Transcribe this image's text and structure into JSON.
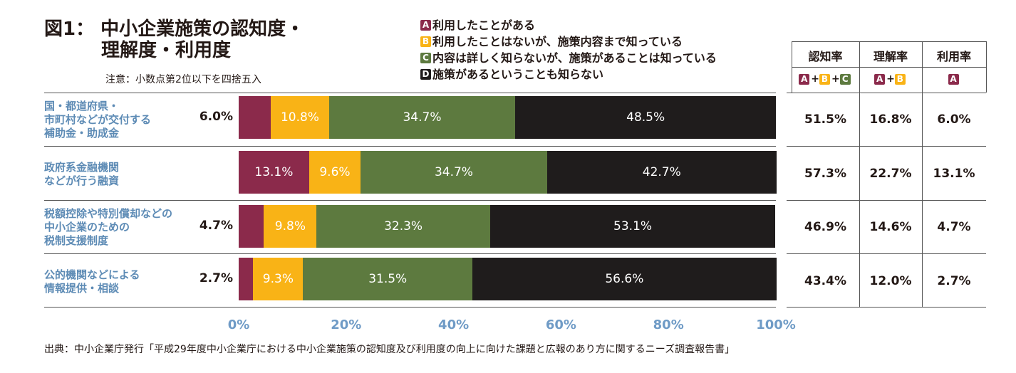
{
  "title_line1": "図1：  中小企業施策の認知度・",
  "title_line2": "理解度・利用度",
  "note": "注意：小数点第2位以下を四捨五入",
  "legend": [
    {
      "key": "A",
      "text": "利用したことがある"
    },
    {
      "key": "B",
      "text": "利用したことはないが、施策内容まで知っている"
    },
    {
      "key": "C",
      "text": "内容は詳しく知らないが、施策があることは知っている"
    },
    {
      "key": "D",
      "text": "施策があるということも知らない"
    }
  ],
  "colors": {
    "A": "#8b2a4b",
    "B": "#f9b316",
    "C": "#5d7a3f",
    "D": "#1f1c1c"
  },
  "table": {
    "headers": [
      "認知率",
      "理解率",
      "利用率"
    ],
    "formulas": [
      [
        "A",
        "+",
        "B",
        "+",
        "C"
      ],
      [
        "A",
        "+",
        "B"
      ],
      [
        "A"
      ]
    ],
    "rows": [
      [
        "51.5%",
        "16.8%",
        "6.0%"
      ],
      [
        "57.3%",
        "22.7%",
        "13.1%"
      ],
      [
        "46.9%",
        "14.6%",
        "4.7%"
      ],
      [
        "43.4%",
        "12.0%",
        "2.7%"
      ]
    ]
  },
  "chart_data": {
    "type": "bar",
    "orientation": "horizontal",
    "stacked": true,
    "categories": [
      [
        "国・都道府県・",
        "市町村などが交付する",
        "補助金・助成金"
      ],
      [
        "政府系金融機関",
        "などが行う融資"
      ],
      [
        "税額控除や特別償却などの",
        "中小企業のための",
        "税制支援制度"
      ],
      [
        "公的機関などによる",
        "情報提供・相談"
      ]
    ],
    "series": [
      {
        "name": "A",
        "values": [
          6.0,
          13.1,
          4.7,
          2.7
        ],
        "labels": [
          "6.0%",
          "13.1%",
          "4.7%",
          "2.7%"
        ]
      },
      {
        "name": "B",
        "values": [
          10.8,
          9.6,
          9.8,
          9.3
        ],
        "labels": [
          "10.8%",
          "9.6%",
          "9.8%",
          "9.3%"
        ]
      },
      {
        "name": "C",
        "values": [
          34.7,
          34.7,
          32.3,
          31.5
        ],
        "labels": [
          "34.7%",
          "34.7%",
          "32.3%",
          "31.5%"
        ]
      },
      {
        "name": "D",
        "values": [
          48.5,
          42.7,
          53.1,
          56.6
        ],
        "labels": [
          "48.5%",
          "42.7%",
          "53.1%",
          "56.6%"
        ]
      }
    ],
    "xlim": [
      0,
      100
    ],
    "xticks": [
      "0%",
      "20%",
      "40%",
      "60%",
      "80%",
      "100%"
    ]
  },
  "source": "出典：中小企業庁発行「平成29年度中小企業庁における中小企業施策の認知度及び利用度の向上に向けた課題と広報のあり方に関するニーズ調査報告書」"
}
